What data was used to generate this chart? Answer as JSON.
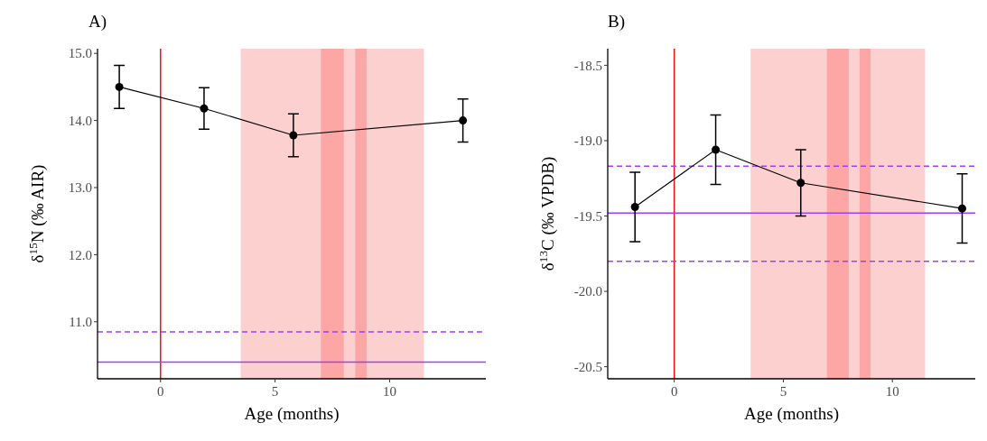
{
  "chart_data": [
    {
      "type": "line",
      "title": "A)",
      "xlabel": "Age (months)",
      "ylabel": "δ$^{15}$N (‰ AIR)",
      "x": [
        -1.8,
        1.9,
        5.8,
        13.2
      ],
      "series": [
        {
          "color": "#000000",
          "values": [
            14.5,
            14.18,
            13.78,
            14.0
          ],
          "errors": [
            0.32,
            0.31,
            0.32,
            0.32
          ]
        }
      ],
      "marker": "circle",
      "line_style": "solid",
      "grid": false,
      "xlim": [
        -2.75,
        14.2
      ],
      "xticks": [
        0,
        5,
        10
      ],
      "ylim": [
        10.15,
        15.07
      ],
      "yticks": [
        {
          "value": 11,
          "label": "11.0"
        },
        {
          "value": 12,
          "label": "12.0"
        },
        {
          "value": 13,
          "label": "13.0"
        },
        {
          "value": 14,
          "label": "14.0"
        },
        {
          "value": 15,
          "label": "15.0"
        }
      ],
      "bands": [
        {
          "axis": "x",
          "from": 3.5,
          "to": 11.5,
          "color": "#fdc8c8"
        },
        {
          "axis": "x",
          "from": 7,
          "to": 8,
          "color": "#fb9f9f"
        },
        {
          "axis": "x",
          "from": 8.5,
          "to": 9,
          "color": "#fb9f9f"
        }
      ],
      "ref_lines": [
        {
          "axis": "x",
          "value": 0,
          "color": "#ee1111",
          "line_style": "solid"
        },
        {
          "axis": "y",
          "value": 10.85,
          "color": "#a040f0",
          "line_style": "dashed"
        },
        {
          "axis": "y",
          "value": 10.4,
          "color": "#a040f0",
          "line_style": "solid"
        }
      ]
    },
    {
      "type": "line",
      "title": "B)",
      "xlabel": "Age (months)",
      "ylabel": "δ$^{13}$C (‰ VPDB)",
      "x": [
        -1.8,
        1.9,
        5.8,
        13.2
      ],
      "series": [
        {
          "color": "#000000",
          "values": [
            -19.44,
            -19.06,
            -19.28,
            -19.45
          ],
          "errors": [
            0.23,
            0.23,
            0.22,
            0.23
          ]
        }
      ],
      "marker": "circle",
      "line_style": "solid",
      "grid": false,
      "xlim": [
        -3.05,
        13.8
      ],
      "xticks": [
        0,
        5,
        10
      ],
      "ylim": [
        -20.58,
        -18.39
      ],
      "yticks": [
        {
          "value": -20.5,
          "label": "-20.5"
        },
        {
          "value": -20,
          "label": "-20.0"
        },
        {
          "value": -19.5,
          "label": "-19.5"
        },
        {
          "value": -19,
          "label": "-19.0"
        },
        {
          "value": -18.5,
          "label": "-18.5"
        }
      ],
      "bands": [
        {
          "axis": "x",
          "from": 3.5,
          "to": 11.5,
          "color": "#fdc8c8"
        },
        {
          "axis": "x",
          "from": 7,
          "to": 8,
          "color": "#fb9f9f"
        },
        {
          "axis": "x",
          "from": 8.5,
          "to": 9,
          "color": "#fb9f9f"
        }
      ],
      "ref_lines": [
        {
          "axis": "x",
          "value": 0,
          "color": "#ee1111",
          "line_style": "solid"
        },
        {
          "axis": "y",
          "value": -19.17,
          "color": "#a040f0",
          "line_style": "dashed"
        },
        {
          "axis": "y",
          "value": -19.48,
          "color": "#a040f0",
          "line_style": "solid"
        },
        {
          "axis": "y",
          "value": -19.8,
          "color": "#a040f0",
          "line_style": "dashed"
        }
      ]
    }
  ]
}
